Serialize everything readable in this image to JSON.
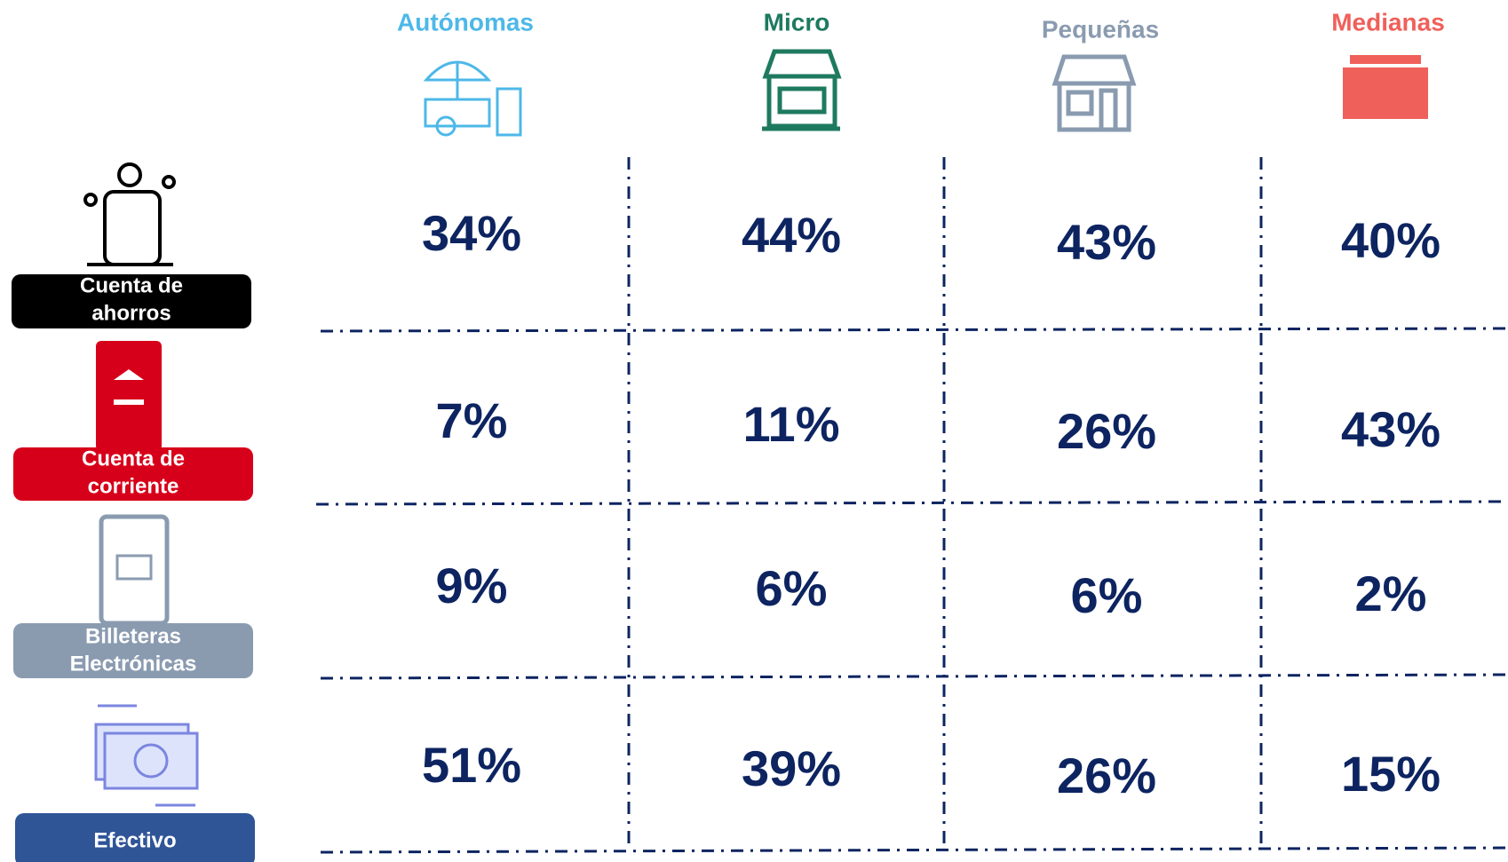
{
  "table": {
    "columns": [
      "Autónomas",
      "Micro",
      "Pequeñas",
      "Medianas"
    ],
    "rows": [
      {
        "label": "Cuenta de ahorros",
        "values": [
          "34%",
          "44%",
          "43%",
          "40%"
        ]
      },
      {
        "label": "Cuenta de corriente",
        "values": [
          "7%",
          "11%",
          "26%",
          "43%"
        ]
      },
      {
        "label": "Billeteras Electrónicas",
        "values": [
          "9%",
          "6%",
          "6%",
          "2%"
        ]
      },
      {
        "label": "Efectivo",
        "values": [
          "51%",
          "39%",
          "26%",
          "15%"
        ]
      }
    ]
  }
}
